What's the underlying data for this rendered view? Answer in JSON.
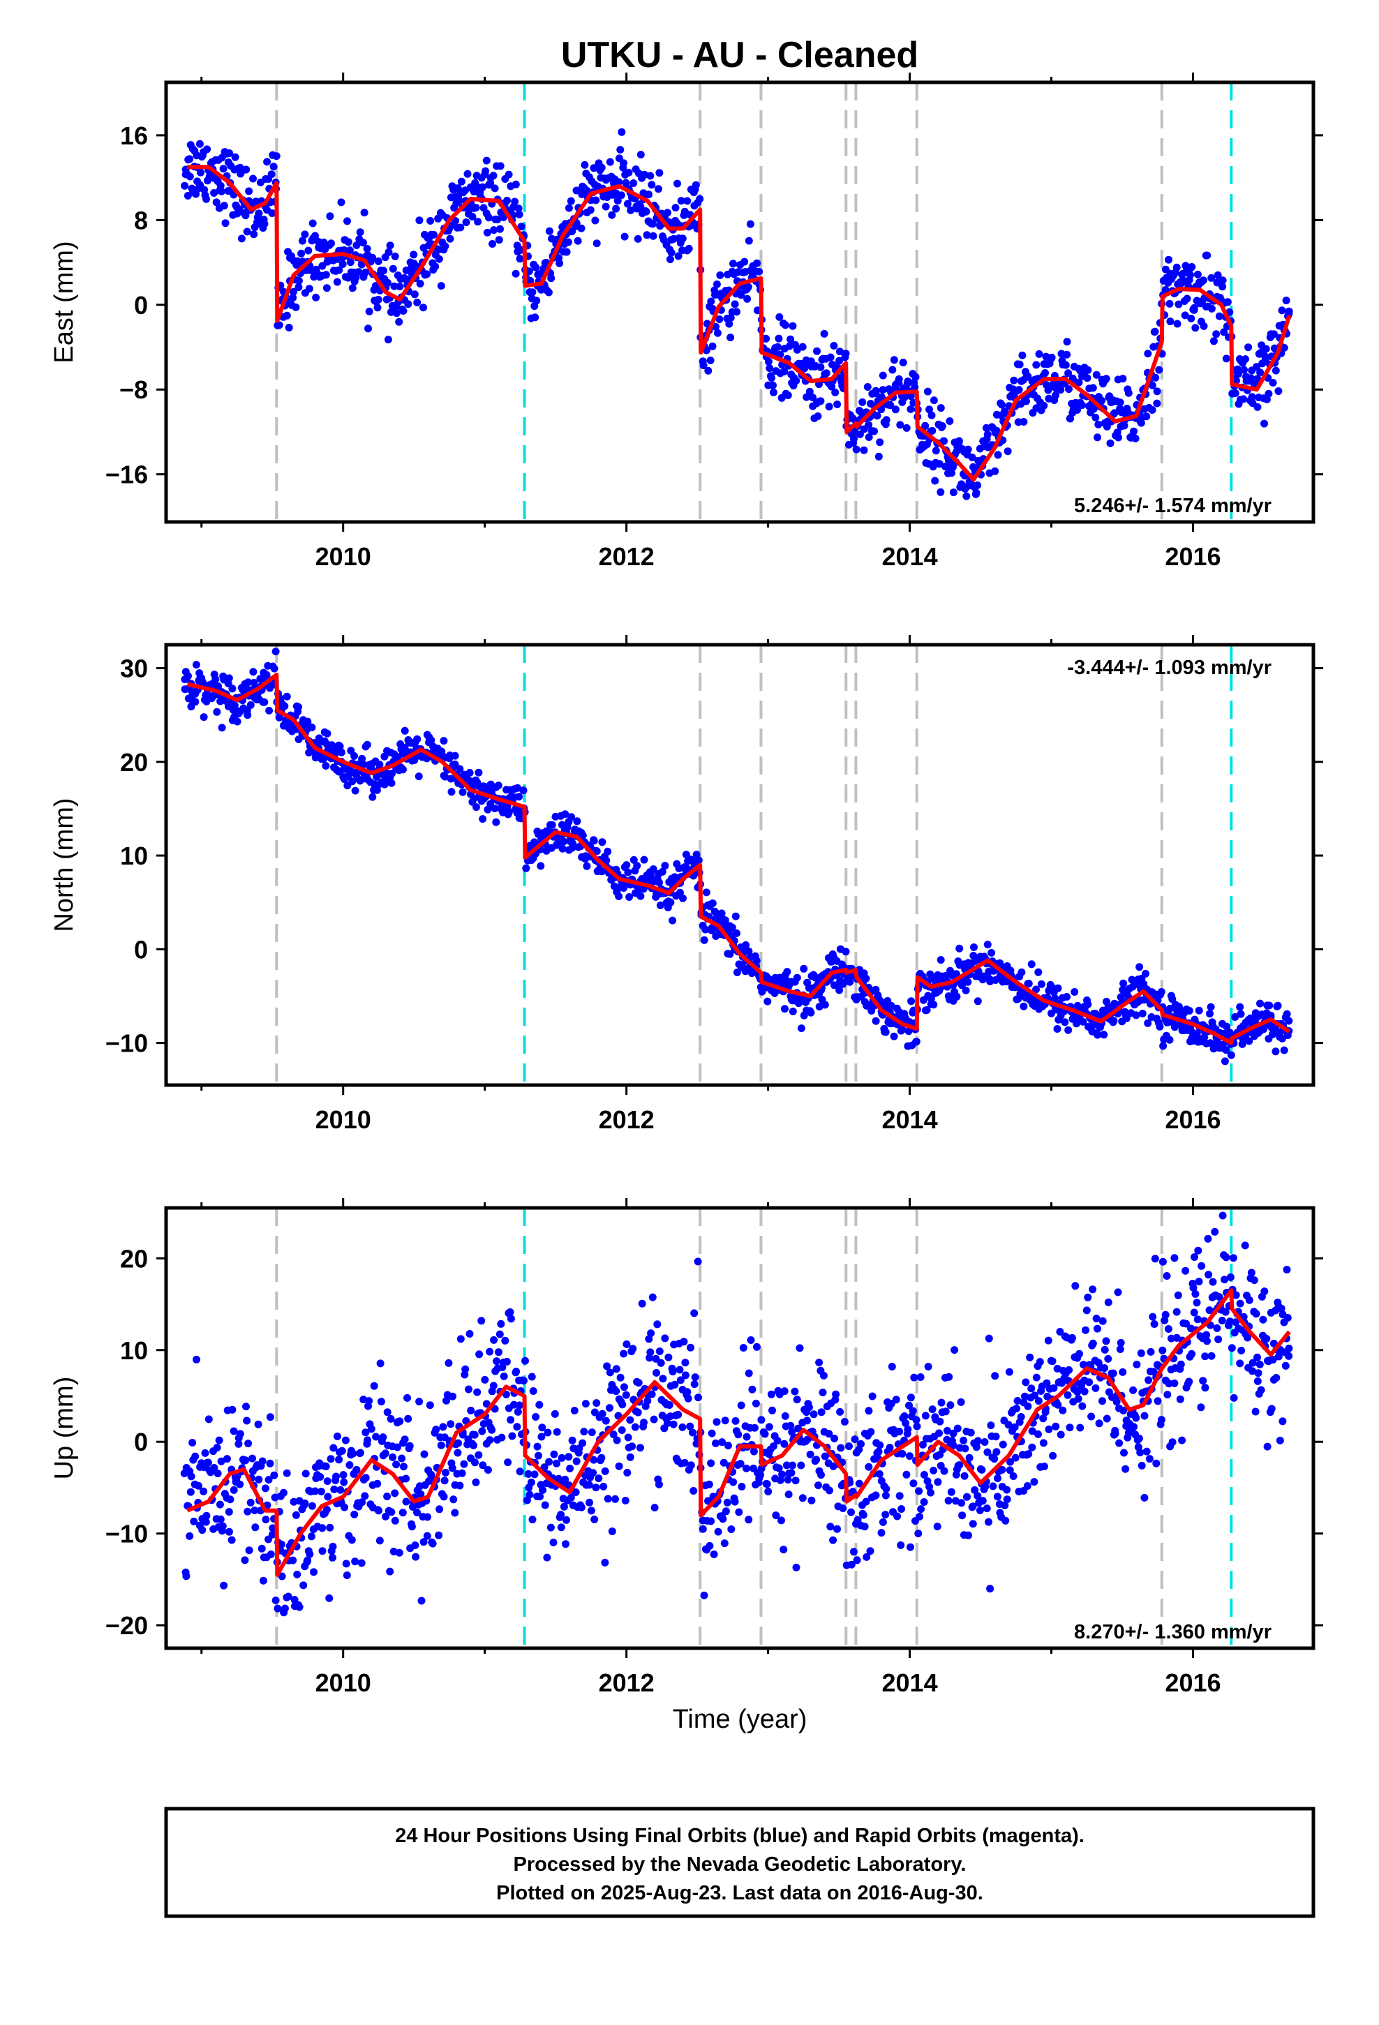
{
  "title": "UTKU  - AU - Cleaned",
  "x_axis_label": "Time (year)",
  "footer": {
    "line1": "24 Hour Positions Using Final Orbits (blue) and Rapid Orbits (magenta).",
    "line2": "Processed by the Nevada Geodetic Laboratory.",
    "line3": "Plotted on 2025-Aug-23. Last data on 2016-Aug-30."
  },
  "colors": {
    "data_points": "#0000ff",
    "model_line": "#ff0000",
    "equipment_change_line": "#c0c0c0",
    "earthquake_line": "#00e0e0",
    "frame": "#000000"
  },
  "chart_data": [
    {
      "type": "scatter",
      "name": "east",
      "ylabel": "East (mm)",
      "xlim": [
        2008.75,
        2016.85
      ],
      "ylim": [
        -20.5,
        21
      ],
      "x_ticks": [
        2010,
        2012,
        2014,
        2016
      ],
      "y_ticks": [
        -16,
        -8,
        0,
        8,
        16
      ],
      "rate_label": "5.246+/- 1.574 mm/yr",
      "rate_position": "bottom-right",
      "breaks_gray": [
        2009.53,
        2012.52,
        2012.95,
        2013.55,
        2013.62,
        2014.05,
        2015.78
      ],
      "breaks_cyan": [
        2011.28,
        2016.27
      ],
      "model_keypoints": [
        [
          2008.9,
          13.0
        ],
        [
          2009.05,
          13.0
        ],
        [
          2009.2,
          11.5
        ],
        [
          2009.35,
          9.0
        ],
        [
          2009.45,
          9.6
        ],
        [
          2009.53,
          11.5
        ],
        [
          2009.535,
          -1.5
        ],
        [
          2009.65,
          2.8
        ],
        [
          2009.8,
          4.6
        ],
        [
          2010.0,
          4.8
        ],
        [
          2010.15,
          4.2
        ],
        [
          2010.3,
          1.2
        ],
        [
          2010.4,
          0.5
        ],
        [
          2010.55,
          3.5
        ],
        [
          2010.75,
          8.0
        ],
        [
          2010.9,
          10.0
        ],
        [
          2011.1,
          9.8
        ],
        [
          2011.28,
          6.0
        ],
        [
          2011.285,
          1.8
        ],
        [
          2011.4,
          2.0
        ],
        [
          2011.55,
          6.5
        ],
        [
          2011.75,
          10.5
        ],
        [
          2011.95,
          11.2
        ],
        [
          2012.15,
          9.8
        ],
        [
          2012.3,
          7.2
        ],
        [
          2012.4,
          7.2
        ],
        [
          2012.52,
          9.0
        ],
        [
          2012.525,
          -4.5
        ],
        [
          2012.65,
          -0.2
        ],
        [
          2012.8,
          2.0
        ],
        [
          2012.95,
          2.5
        ],
        [
          2012.955,
          -4.5
        ],
        [
          2013.15,
          -5.5
        ],
        [
          2013.3,
          -7.2
        ],
        [
          2013.45,
          -7.0
        ],
        [
          2013.55,
          -5.5
        ],
        [
          2013.555,
          -12.0
        ],
        [
          2013.62,
          -11.2
        ],
        [
          2013.625,
          -11.5
        ],
        [
          2013.75,
          -9.8
        ],
        [
          2013.9,
          -8.3
        ],
        [
          2014.05,
          -8.2
        ],
        [
          2014.055,
          -11.5
        ],
        [
          2014.2,
          -13.0
        ],
        [
          2014.35,
          -15.0
        ],
        [
          2014.45,
          -16.5
        ],
        [
          2014.6,
          -13.5
        ],
        [
          2014.75,
          -9.0
        ],
        [
          2014.95,
          -7.0
        ],
        [
          2015.1,
          -7.0
        ],
        [
          2015.25,
          -8.5
        ],
        [
          2015.45,
          -11.0
        ],
        [
          2015.6,
          -10.5
        ],
        [
          2015.78,
          -3.5
        ],
        [
          2015.785,
          0.8
        ],
        [
          2015.9,
          1.5
        ],
        [
          2016.05,
          1.4
        ],
        [
          2016.2,
          0.0
        ],
        [
          2016.27,
          -2.0
        ],
        [
          2016.275,
          -7.5
        ],
        [
          2016.45,
          -8.0
        ],
        [
          2016.6,
          -4.5
        ],
        [
          2016.68,
          -1.0
        ]
      ],
      "scatter_noise_mm": 1.7
    },
    {
      "type": "scatter",
      "name": "north",
      "ylabel": "North (mm)",
      "xlim": [
        2008.75,
        2016.85
      ],
      "ylim": [
        -14.5,
        32.5
      ],
      "x_ticks": [
        2010,
        2012,
        2014,
        2016
      ],
      "y_ticks": [
        -10,
        0,
        10,
        20,
        30
      ],
      "rate_label": "-3.444+/- 1.093 mm/yr",
      "rate_position": "top-right",
      "breaks_gray": [
        2009.53,
        2012.52,
        2012.95,
        2013.55,
        2013.62,
        2014.05,
        2015.78
      ],
      "breaks_cyan": [
        2011.28,
        2016.27
      ],
      "model_keypoints": [
        [
          2008.9,
          28.3
        ],
        [
          2009.1,
          27.6
        ],
        [
          2009.25,
          26.6
        ],
        [
          2009.4,
          27.8
        ],
        [
          2009.53,
          29.3
        ],
        [
          2009.535,
          25.5
        ],
        [
          2009.65,
          24.5
        ],
        [
          2009.8,
          21.5
        ],
        [
          2010.0,
          20.0
        ],
        [
          2010.2,
          18.8
        ],
        [
          2010.35,
          19.6
        ],
        [
          2010.55,
          21.3
        ],
        [
          2010.7,
          20.0
        ],
        [
          2010.9,
          17.0
        ],
        [
          2011.1,
          16.0
        ],
        [
          2011.28,
          15.2
        ],
        [
          2011.285,
          9.8
        ],
        [
          2011.5,
          12.5
        ],
        [
          2011.65,
          12.0
        ],
        [
          2011.8,
          9.5
        ],
        [
          2011.95,
          7.5
        ],
        [
          2012.15,
          6.8
        ],
        [
          2012.3,
          6.0
        ],
        [
          2012.4,
          7.5
        ],
        [
          2012.52,
          9.0
        ],
        [
          2012.525,
          3.5
        ],
        [
          2012.65,
          2.5
        ],
        [
          2012.8,
          -0.5
        ],
        [
          2012.95,
          -2.5
        ],
        [
          2012.955,
          -3.5
        ],
        [
          2013.15,
          -4.5
        ],
        [
          2013.3,
          -5.0
        ],
        [
          2013.45,
          -2.5
        ],
        [
          2013.55,
          -2.2
        ],
        [
          2013.555,
          -2.5
        ],
        [
          2013.62,
          -2.2
        ],
        [
          2013.625,
          -3.0
        ],
        [
          2013.8,
          -6.5
        ],
        [
          2013.95,
          -8.0
        ],
        [
          2014.05,
          -8.5
        ],
        [
          2014.055,
          -3.0
        ],
        [
          2014.15,
          -4.0
        ],
        [
          2014.3,
          -3.5
        ],
        [
          2014.55,
          -1.2
        ],
        [
          2014.75,
          -3.5
        ],
        [
          2014.95,
          -5.5
        ],
        [
          2015.15,
          -6.5
        ],
        [
          2015.35,
          -7.7
        ],
        [
          2015.55,
          -5.5
        ],
        [
          2015.65,
          -4.5
        ],
        [
          2015.78,
          -6.5
        ],
        [
          2015.785,
          -7.0
        ],
        [
          2016.0,
          -8.0
        ],
        [
          2016.15,
          -9.0
        ],
        [
          2016.27,
          -10.0
        ],
        [
          2016.275,
          -9.5
        ],
        [
          2016.4,
          -8.5
        ],
        [
          2016.55,
          -7.5
        ],
        [
          2016.68,
          -8.8
        ]
      ],
      "scatter_noise_mm": 1.1
    },
    {
      "type": "scatter",
      "name": "up",
      "ylabel": "Up (mm)",
      "xlim": [
        2008.75,
        2016.85
      ],
      "ylim": [
        -22.5,
        25.5
      ],
      "x_ticks": [
        2010,
        2012,
        2014,
        2016
      ],
      "y_ticks": [
        -20,
        -10,
        0,
        10,
        20
      ],
      "rate_label": "8.270+/- 1.360 mm/yr",
      "rate_position": "bottom-right",
      "breaks_gray": [
        2009.53,
        2012.52,
        2012.95,
        2013.55,
        2013.62,
        2014.05,
        2015.78
      ],
      "breaks_cyan": [
        2011.28,
        2016.27
      ],
      "model_keypoints": [
        [
          2008.9,
          -7.5
        ],
        [
          2009.05,
          -6.5
        ],
        [
          2009.2,
          -3.5
        ],
        [
          2009.3,
          -3.0
        ],
        [
          2009.45,
          -7.5
        ],
        [
          2009.53,
          -7.5
        ],
        [
          2009.535,
          -14.5
        ],
        [
          2009.7,
          -10.0
        ],
        [
          2009.85,
          -7.0
        ],
        [
          2010.0,
          -6.0
        ],
        [
          2010.2,
          -2.0
        ],
        [
          2010.35,
          -3.5
        ],
        [
          2010.5,
          -6.5
        ],
        [
          2010.6,
          -6.0
        ],
        [
          2010.8,
          1.0
        ],
        [
          2011.0,
          3.0
        ],
        [
          2011.15,
          6.0
        ],
        [
          2011.28,
          5.0
        ],
        [
          2011.285,
          -1.5
        ],
        [
          2011.45,
          -4.0
        ],
        [
          2011.6,
          -5.5
        ],
        [
          2011.8,
          0.0
        ],
        [
          2012.0,
          3.0
        ],
        [
          2012.2,
          6.5
        ],
        [
          2012.4,
          3.5
        ],
        [
          2012.52,
          2.5
        ],
        [
          2012.525,
          -8.0
        ],
        [
          2012.65,
          -6.0
        ],
        [
          2012.8,
          -0.5
        ],
        [
          2012.95,
          -0.5
        ],
        [
          2012.955,
          -2.5
        ],
        [
          2013.1,
          -1.5
        ],
        [
          2013.25,
          1.3
        ],
        [
          2013.4,
          -0.5
        ],
        [
          2013.55,
          -3.5
        ],
        [
          2013.555,
          -6.5
        ],
        [
          2013.62,
          -5.8
        ],
        [
          2013.625,
          -6.0
        ],
        [
          2013.8,
          -2.0
        ],
        [
          2013.95,
          -0.5
        ],
        [
          2014.05,
          0.5
        ],
        [
          2014.055,
          -2.5
        ],
        [
          2014.2,
          0.0
        ],
        [
          2014.35,
          -1.5
        ],
        [
          2014.5,
          -4.5
        ],
        [
          2014.7,
          -1.5
        ],
        [
          2014.9,
          3.5
        ],
        [
          2015.05,
          5.0
        ],
        [
          2015.25,
          8.0
        ],
        [
          2015.4,
          7.0
        ],
        [
          2015.55,
          3.5
        ],
        [
          2015.65,
          4.0
        ],
        [
          2015.78,
          8.0
        ],
        [
          2015.9,
          10.5
        ],
        [
          2016.1,
          13.0
        ],
        [
          2016.27,
          16.5
        ],
        [
          2016.275,
          14.5
        ],
        [
          2016.4,
          12.0
        ],
        [
          2016.55,
          9.5
        ],
        [
          2016.68,
          12.0
        ]
      ],
      "scatter_noise_mm": 4.5
    }
  ]
}
